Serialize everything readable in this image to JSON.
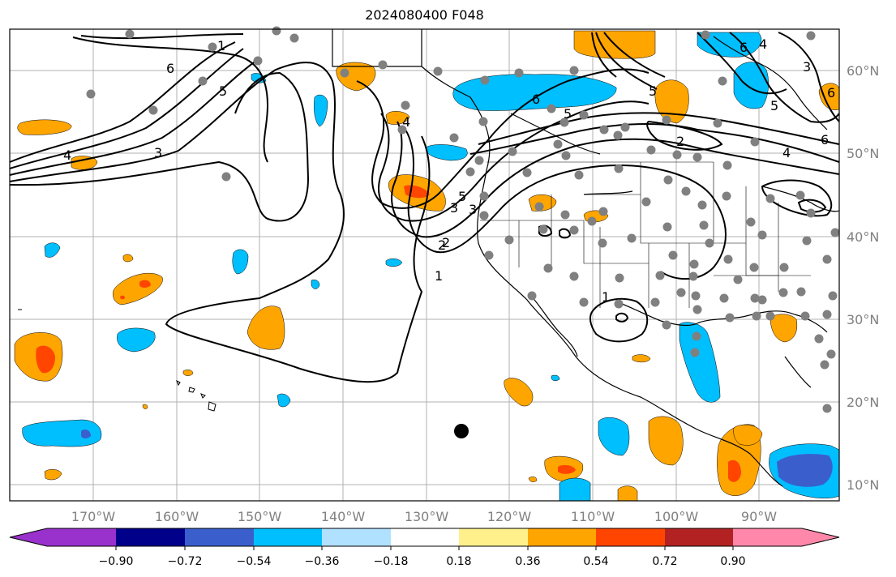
{
  "title": "2024080400 F048",
  "lon_labels": [
    "170°W",
    "160°W",
    "150°W",
    "140°W",
    "130°W",
    "120°W",
    "110°W",
    "100°W",
    "90°W"
  ],
  "lat_labels": [
    "60°N",
    "50°N",
    "40°N",
    "30°N",
    "20°N",
    "10°N"
  ],
  "colorbar": {
    "ticks": [
      "−0.90",
      "−0.72",
      "−0.54",
      "−0.36",
      "−0.18",
      "0.18",
      "0.36",
      "0.54",
      "0.72",
      "0.90"
    ],
    "colors": [
      "#9932cc",
      "#00008b",
      "#3a5fcd",
      "#00bfff",
      "#b0e2ff",
      "#ffffff",
      "#fff08c",
      "#ffa500",
      "#ff4500",
      "#b22222",
      "#ff88aa"
    ]
  },
  "contour_labels": [
    "1",
    "2",
    "3",
    "4",
    "5",
    "6",
    "1",
    "2",
    "3",
    "4",
    "5",
    "6",
    "5",
    "6",
    "5",
    "6",
    "4",
    "3",
    "2",
    "1",
    "4",
    "3",
    "5",
    "6"
  ],
  "colors": {
    "pos_light": "#ffa500",
    "pos_strong": "#ff4500",
    "neg_light": "#00bfff",
    "neg_strong": "#3a5fcd",
    "station": "#808080",
    "grid": "#b0b0b0",
    "coast": "#000000",
    "axis_label": "#808080"
  }
}
